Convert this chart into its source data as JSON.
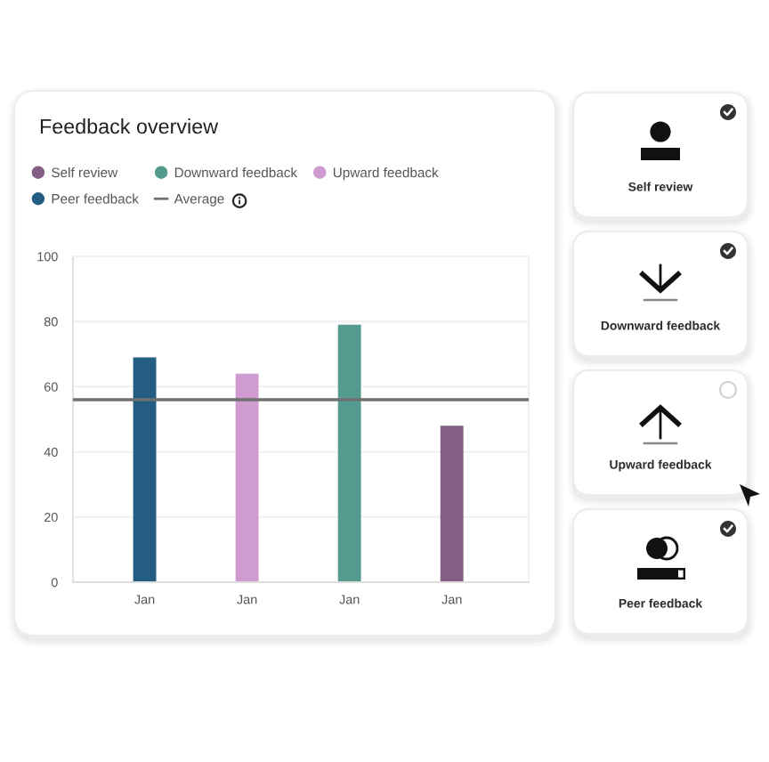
{
  "chart_data": [
    {
      "type": "bar",
      "title": "Feedback overview",
      "categories": [
        "Jan",
        "Jan",
        "Jan",
        "Jan"
      ],
      "series": [
        {
          "name": "Self review",
          "color": "#835f84",
          "values": [
            null,
            null,
            null,
            48
          ]
        },
        {
          "name": "Downward feedback",
          "color": "#559a8f",
          "values": [
            null,
            null,
            79,
            null
          ]
        },
        {
          "name": "Upward feedback",
          "color": "#cf9bd0",
          "values": [
            null,
            64,
            null,
            null
          ]
        },
        {
          "name": "Peer feedback",
          "color": "#235d82",
          "values": [
            69,
            null,
            null,
            null
          ]
        }
      ],
      "ylim": [
        0,
        100
      ],
      "yticks": [
        0,
        20,
        40,
        60,
        80,
        100
      ],
      "ref_lines": [
        {
          "axis": "y",
          "value": 56,
          "label": "Average",
          "color": "#707070"
        }
      ],
      "grid": "y",
      "legend": "top"
    },
    {
      "type": "other",
      "annotations": [
        "Self review",
        "Downward feedback",
        "Upward feedback",
        "Peer feedback"
      ]
    }
  ]
}
